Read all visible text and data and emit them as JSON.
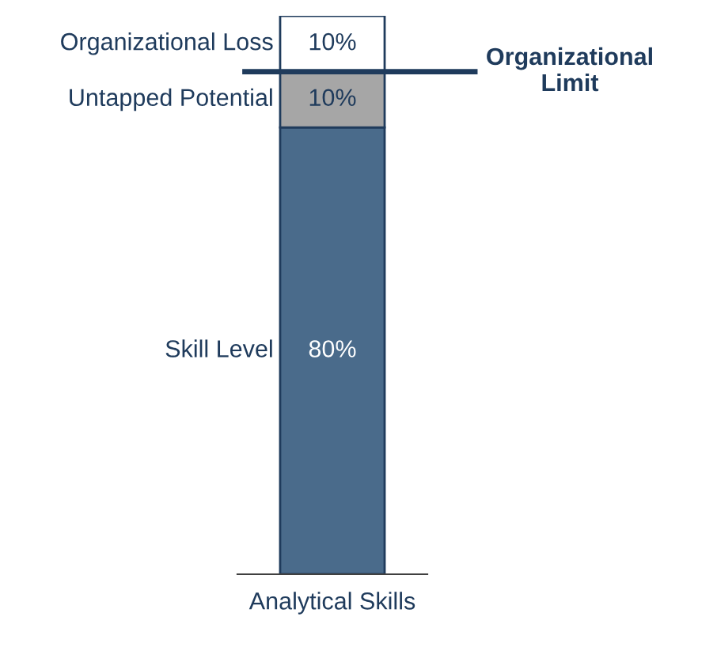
{
  "chart_data": {
    "type": "bar",
    "stacked": true,
    "categories": [
      "Analytical Skills"
    ],
    "series": [
      {
        "name": "Skill Level",
        "color": "#4a6b8b",
        "values": [
          80
        ],
        "value_labels": [
          "80%"
        ]
      },
      {
        "name": "Untapped Potential",
        "color": "#a6a6a6",
        "values": [
          10
        ],
        "value_labels": [
          "10%"
        ]
      },
      {
        "name": "Organizational Loss",
        "color": "#ffffff",
        "values": [
          10
        ],
        "value_labels": [
          "10%"
        ]
      }
    ],
    "ref_lines": [
      {
        "axis": "y",
        "value": 90,
        "label": "Organizational\nLimit",
        "color": "#1f3b5c"
      }
    ],
    "legend": false,
    "grid": false
  }
}
